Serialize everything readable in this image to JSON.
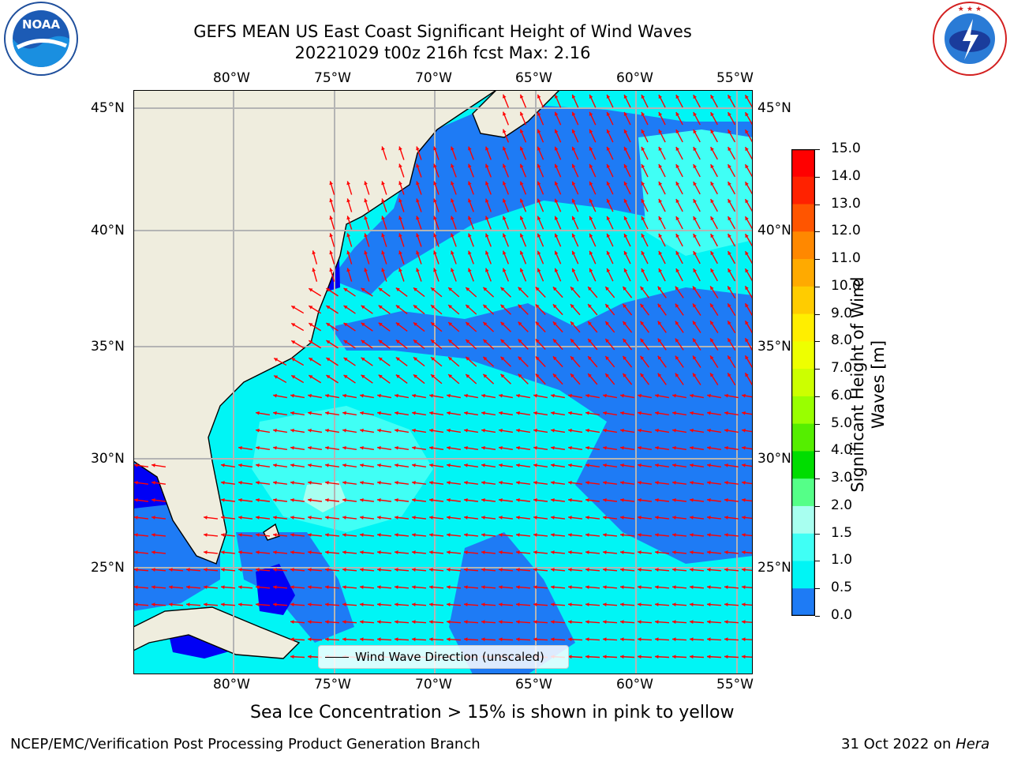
{
  "header": {
    "title_line1": "GEFS MEAN US East Coast Significant Height of Wind Waves",
    "title_line2": "20221029 t00z 216h fcst   Max: 2.16"
  },
  "logos": {
    "left": {
      "icon": "noaa-logo",
      "text": "NOAA"
    },
    "right": {
      "icon": "national-weather-service-logo",
      "text": "NATIONAL WEATHER SERVICE"
    }
  },
  "map": {
    "lon_labels": [
      "80°W",
      "75°W",
      "70°W",
      "65°W",
      "60°W",
      "55°W"
    ],
    "lat_labels": [
      "45°N",
      "40°N",
      "35°N",
      "30°N",
      "25°N"
    ],
    "legend_label": "Wind Wave Direction (unscaled)",
    "colors": {
      "land": "#efedde",
      "ocean_05_10": "#1e7bf5",
      "ocean_10_15": "#00f5f5",
      "ocean_15_20": "#40fff5",
      "ocean_20_30": "#a8fff0",
      "ocean_00_05": "#0000f5",
      "arrows": "#ff0000",
      "grid": "#b4b4b4"
    }
  },
  "colorbar": {
    "label": "Significant Height of Wind Waves [m]",
    "label_line1": "Significant Height of Wind",
    "label_line2": "Waves [m]",
    "ticks": [
      "15.0",
      "14.0",
      "13.0",
      "12.0",
      "11.0",
      "10.0",
      "9.0",
      "8.0",
      "7.0",
      "6.0",
      "5.0",
      "4.0",
      "3.0",
      "2.0",
      "1.5",
      "1.0",
      "0.5",
      "0.0"
    ],
    "colors": [
      "#ff0000",
      "#ff2200",
      "#ff5500",
      "#ff8800",
      "#ffaa00",
      "#ffcc00",
      "#ffee00",
      "#eeff00",
      "#ccff00",
      "#99ff00",
      "#55ee00",
      "#00dd00",
      "#55ff88",
      "#a8fff0",
      "#40fff5",
      "#00f5f5",
      "#1e7bf5",
      "#0000f5"
    ]
  },
  "caption": "Sea Ice Concentration > 15% is shown in pink to yellow",
  "footer": {
    "left": "NCEP/EMC/Verification Post Processing Product Generation Branch",
    "right_prefix": "31 Oct 2022 on ",
    "right_host": "Hera"
  }
}
